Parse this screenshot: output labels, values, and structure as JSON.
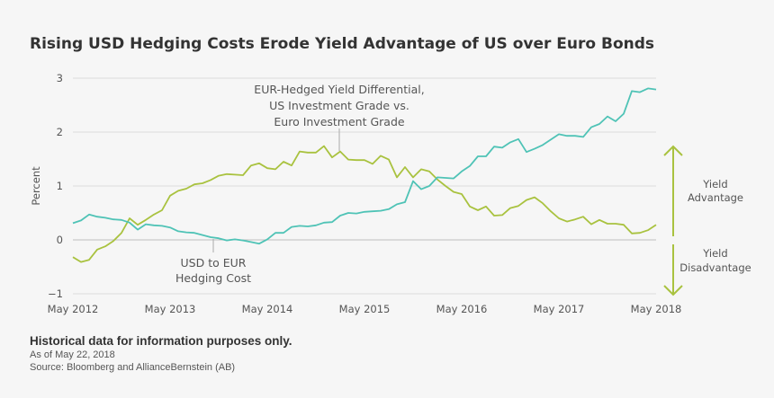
{
  "chart_data": {
    "type": "line",
    "title": "Rising USD Hedging Costs Erode Yield Advantage of US over Euro Bonds",
    "ylabel": "Percent",
    "xlabel": "",
    "ylim": [
      -1,
      3
    ],
    "yticks": [
      "3",
      "2",
      "1",
      "0",
      "−1"
    ],
    "ytick_values": [
      3,
      2,
      1,
      0,
      -1
    ],
    "xticks": [
      "May 2012",
      "May 2013",
      "May 2014",
      "May 2015",
      "May 2016",
      "May 2017",
      "May 2018"
    ],
    "xlim": [
      "2012-05",
      "2018-05"
    ],
    "grid": true,
    "x": [
      "2012-05",
      "2012-06",
      "2012-07",
      "2012-08",
      "2012-09",
      "2012-10",
      "2012-11",
      "2012-12",
      "2013-01",
      "2013-02",
      "2013-03",
      "2013-04",
      "2013-05",
      "2013-06",
      "2013-07",
      "2013-08",
      "2013-09",
      "2013-10",
      "2013-11",
      "2013-12",
      "2014-01",
      "2014-02",
      "2014-03",
      "2014-04",
      "2014-05",
      "2014-06",
      "2014-07",
      "2014-08",
      "2014-09",
      "2014-10",
      "2014-11",
      "2014-12",
      "2015-01",
      "2015-02",
      "2015-03",
      "2015-04",
      "2015-05",
      "2015-06",
      "2015-07",
      "2015-08",
      "2015-09",
      "2015-10",
      "2015-11",
      "2015-12",
      "2016-01",
      "2016-02",
      "2016-03",
      "2016-04",
      "2016-05",
      "2016-06",
      "2016-07",
      "2016-08",
      "2016-09",
      "2016-10",
      "2016-11",
      "2016-12",
      "2017-01",
      "2017-02",
      "2017-03",
      "2017-04",
      "2017-05",
      "2017-06",
      "2017-07",
      "2017-08",
      "2017-09",
      "2017-10",
      "2017-11",
      "2017-12",
      "2018-01",
      "2018-02",
      "2018-03",
      "2018-04",
      "2018-05"
    ],
    "series": [
      {
        "name": "EUR-Hedged Yield Differential, US Investment Grade vs. Euro Investment Grade",
        "color": "#a9c23f",
        "values": [
          -0.32,
          -0.41,
          -0.37,
          -0.18,
          -0.12,
          -0.02,
          0.13,
          0.4,
          0.28,
          0.37,
          0.47,
          0.55,
          0.82,
          0.91,
          0.95,
          1.03,
          1.05,
          1.11,
          1.19,
          1.22,
          1.21,
          1.2,
          1.38,
          1.42,
          1.33,
          1.31,
          1.45,
          1.38,
          1.64,
          1.62,
          1.62,
          1.74,
          1.53,
          1.64,
          1.49,
          1.48,
          1.48,
          1.41,
          1.56,
          1.49,
          1.16,
          1.35,
          1.16,
          1.31,
          1.27,
          1.12,
          1.0,
          0.89,
          0.85,
          0.62,
          0.55,
          0.62,
          0.45,
          0.46,
          0.59,
          0.63,
          0.74,
          0.79,
          0.68,
          0.53,
          0.4,
          0.34,
          0.38,
          0.43,
          0.29,
          0.37,
          0.3,
          0.3,
          0.28,
          0.12,
          0.13,
          0.18,
          0.28
        ]
      },
      {
        "name": "USD to EUR Hedging Cost",
        "color": "#4fc3b6",
        "values": [
          0.31,
          0.36,
          0.47,
          0.43,
          0.41,
          0.38,
          0.37,
          0.32,
          0.19,
          0.29,
          0.27,
          0.26,
          0.23,
          0.16,
          0.14,
          0.13,
          0.09,
          0.05,
          0.03,
          -0.01,
          0.01,
          -0.01,
          -0.04,
          -0.07,
          0.01,
          0.13,
          0.13,
          0.24,
          0.26,
          0.25,
          0.27,
          0.32,
          0.33,
          0.45,
          0.5,
          0.49,
          0.52,
          0.53,
          0.54,
          0.57,
          0.66,
          0.7,
          1.09,
          0.94,
          1.0,
          1.16,
          1.15,
          1.14,
          1.27,
          1.37,
          1.55,
          1.55,
          1.73,
          1.71,
          1.81,
          1.87,
          1.63,
          1.69,
          1.76,
          1.86,
          1.96,
          1.93,
          1.93,
          1.91,
          2.09,
          2.15,
          2.29,
          2.2,
          2.34,
          2.76,
          2.74,
          2.81,
          2.79
        ]
      }
    ],
    "annotations": {
      "differential": [
        "EUR-Hedged Yield Differential,",
        "US Investment Grade vs.",
        "Euro Investment Grade"
      ],
      "hedging": [
        "USD to EUR",
        "Hedging Cost"
      ],
      "advantage": [
        "Yield",
        "Advantage"
      ],
      "disadvantage": [
        "Yield",
        "Disadvantage"
      ]
    },
    "arrow_color": "#a9c23f"
  },
  "footer": {
    "note": "Historical data for information purposes only.",
    "as_of": "As of May 22, 2018",
    "source": "Source: Bloomberg and AllianceBernstein (AB)"
  }
}
